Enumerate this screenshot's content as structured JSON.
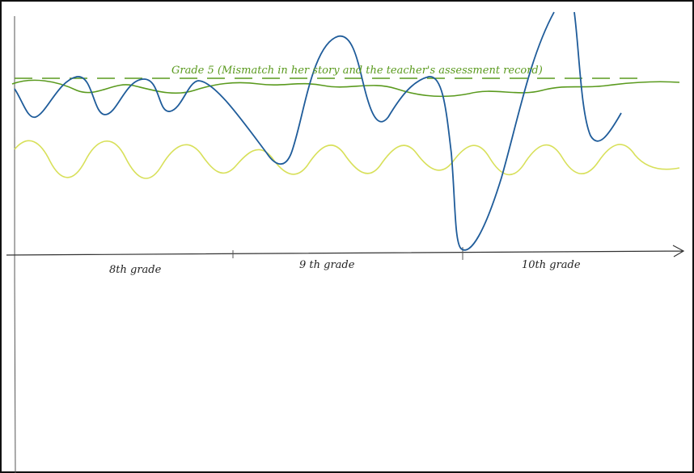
{
  "annotation": "Grade 5 (Mismatch in her story and the teacher's assessment record)",
  "axis_labels": [
    "8th grade",
    "9 th grade",
    "10th grade"
  ]
}
